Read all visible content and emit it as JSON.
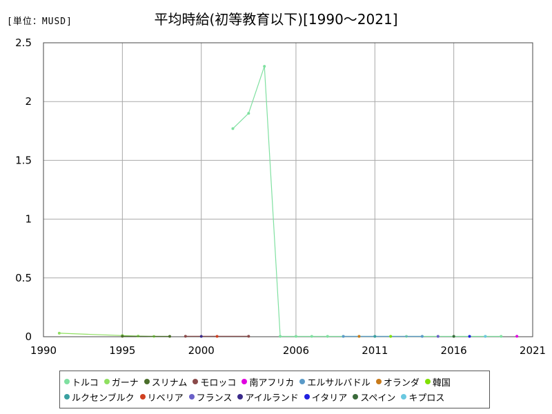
{
  "chart_data": {
    "type": "line",
    "unit_label": "[単位：MUSD]",
    "title": "平均時給(初等教育以下)[1990〜2021]",
    "xlim": [
      1990,
      2021
    ],
    "ylim": [
      0,
      2.5
    ],
    "x_ticks": [
      "1990",
      "1995",
      "2000",
      "2006",
      "2011",
      "2016",
      "2021"
    ],
    "y_ticks": [
      "2.5",
      "2",
      "1.5",
      "1",
      "0.5",
      "0"
    ],
    "grid": true,
    "legend_position": "bottom",
    "series": [
      {
        "name": "トルコ",
        "color": "#7fe0a0",
        "points": [
          [
            2002,
            1.77
          ],
          [
            2003,
            1.9
          ],
          [
            2004,
            2.3
          ],
          [
            2005,
            0.003
          ],
          [
            2006,
            0.003
          ],
          [
            2007,
            0.003
          ],
          [
            2008,
            0.003
          ],
          [
            2009,
            0.003
          ],
          [
            2010,
            0.003
          ],
          [
            2011,
            0.003
          ],
          [
            2012,
            0.003
          ],
          [
            2013,
            0.003
          ],
          [
            2014,
            0.003
          ],
          [
            2015,
            0.003
          ],
          [
            2016,
            0.003
          ],
          [
            2017,
            0.003
          ],
          [
            2018,
            0.003
          ],
          [
            2019,
            0.003
          ]
        ]
      },
      {
        "name": "ガーナ",
        "color": "#8fe060",
        "points": [
          [
            1991,
            0.03
          ],
          [
            1995,
            0.01
          ],
          [
            1996,
            0.005
          ],
          [
            1997,
            0.002
          ]
        ]
      },
      {
        "name": "スリナム",
        "color": "#4a6e2a",
        "points": [
          [
            1995,
            0.004
          ],
          [
            1998,
            0.003
          ]
        ]
      },
      {
        "name": "モロッコ",
        "color": "#8a4a4a",
        "points": [
          [
            1999,
            0.004
          ],
          [
            2003,
            0.004
          ]
        ]
      },
      {
        "name": "南アフリカ",
        "color": "#e000e0",
        "points": [
          [
            2020,
            0.004
          ]
        ]
      },
      {
        "name": "エルサルバドル",
        "color": "#5a9ac8",
        "points": [
          [
            2009,
            0.003
          ],
          [
            2014,
            0.003
          ]
        ]
      },
      {
        "name": "オランダ",
        "color": "#c87a1a",
        "points": [
          [
            2010,
            0.003
          ]
        ]
      },
      {
        "name": "韓国",
        "color": "#80e000",
        "points": [
          [
            2012,
            0.003
          ]
        ]
      },
      {
        "name": "ルクセンブルク",
        "color": "#3aa0a0",
        "points": [
          [
            2011,
            0.003
          ]
        ]
      },
      {
        "name": "リベリア",
        "color": "#d04020",
        "points": [
          [
            2001,
            0.003
          ]
        ]
      },
      {
        "name": "フランス",
        "color": "#6a60c8",
        "points": [
          [
            2015,
            0.003
          ]
        ]
      },
      {
        "name": "アイルランド",
        "color": "#3a2a8a",
        "points": [
          [
            2000,
            0.003
          ]
        ]
      },
      {
        "name": "イタリア",
        "color": "#2020e0",
        "points": [
          [
            2017,
            0.003
          ]
        ]
      },
      {
        "name": "スペイン",
        "color": "#3a6a3a",
        "points": [
          [
            2016,
            0.003
          ]
        ]
      },
      {
        "name": "キプロス",
        "color": "#6ac8e0",
        "points": [
          [
            2018,
            0.003
          ]
        ]
      }
    ]
  }
}
